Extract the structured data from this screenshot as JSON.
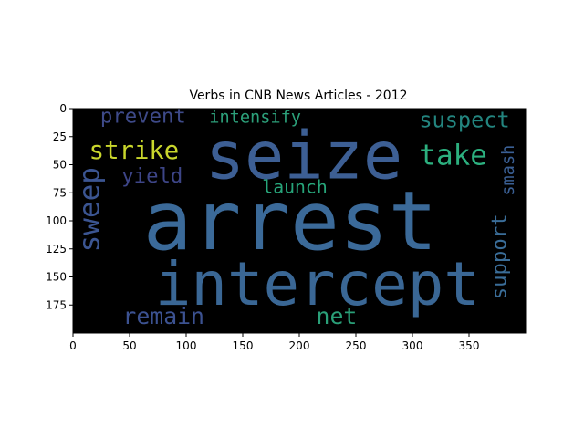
{
  "chart_data": {
    "type": "wordcloud",
    "title": "Verbs in CNB News Articles - 2012",
    "xlim": [
      0,
      400
    ],
    "ylim": [
      200,
      0
    ],
    "x_ticks": [
      0,
      50,
      100,
      150,
      200,
      250,
      300,
      350
    ],
    "y_ticks": [
      0,
      25,
      50,
      75,
      100,
      125,
      150,
      175
    ],
    "background": "#000000",
    "words": [
      {
        "text": "arrest",
        "x": 192,
        "y": 101,
        "size": 72,
        "color": "#3b6a99",
        "rotate": false
      },
      {
        "text": "seize",
        "x": 204,
        "y": 42,
        "size": 58,
        "color": "#3d5f94",
        "rotate": false
      },
      {
        "text": "intercept",
        "x": 216,
        "y": 157,
        "size": 53,
        "color": "#3a6795",
        "rotate": false
      },
      {
        "text": "strike",
        "x": 54,
        "y": 38,
        "size": 22,
        "color": "#c9d62c",
        "rotate": false
      },
      {
        "text": "take",
        "x": 336,
        "y": 42,
        "size": 25,
        "color": "#2cb07f",
        "rotate": false
      },
      {
        "text": "suspect",
        "x": 346,
        "y": 10,
        "size": 19,
        "color": "#23857f",
        "rotate": false
      },
      {
        "text": "prevent",
        "x": 62,
        "y": 7,
        "size": 18,
        "color": "#3e4a89",
        "rotate": false
      },
      {
        "text": "intensify",
        "x": 161,
        "y": 8,
        "size": 15,
        "color": "#2ca07a",
        "rotate": false
      },
      {
        "text": "yield",
        "x": 70,
        "y": 60,
        "size": 18,
        "color": "#3d4587",
        "rotate": false
      },
      {
        "text": "launch",
        "x": 196,
        "y": 70,
        "size": 16,
        "color": "#27a57a",
        "rotate": false
      },
      {
        "text": "sweep",
        "x": 15,
        "y": 90,
        "size": 25,
        "color": "#3b5592",
        "rotate": true
      },
      {
        "text": "smash",
        "x": 385,
        "y": 55,
        "size": 15,
        "color": "#3a5f94",
        "rotate": true
      },
      {
        "text": "support",
        "x": 377,
        "y": 132,
        "size": 18,
        "color": "#3a6d98",
        "rotate": true
      },
      {
        "text": "remain",
        "x": 80,
        "y": 185,
        "size": 20,
        "color": "#3c5291",
        "rotate": false
      },
      {
        "text": "net",
        "x": 233,
        "y": 185,
        "size": 20,
        "color": "#2a9f78",
        "rotate": false
      }
    ]
  }
}
